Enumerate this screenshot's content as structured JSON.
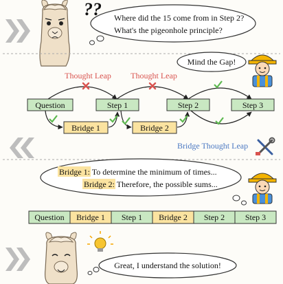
{
  "panel1": {
    "question_marks": "??",
    "bubble_line1": "Where did the 15 come from in Step 2?",
    "bubble_line2": "What's the pigeonhole principle?"
  },
  "worker_bubble": "Mind the Gap!",
  "flow": {
    "leap_label_left": "Thought Leap",
    "leap_label_right": "Thought Leap",
    "nodes": [
      "Question",
      "Step 1",
      "Step 2",
      "Step 3"
    ],
    "bridges": [
      "Bridge 1",
      "Bridge 2"
    ],
    "bridge_caption": "Bridge Thought Leap"
  },
  "panel3": {
    "bridge1_tag": "Bridge 1:",
    "bridge1_text": "To determine the minimum of times...",
    "bridge2_tag": "Bridge 2:",
    "bridge2_text": "Therefore, the possible sums..."
  },
  "sequence": [
    "Question",
    "Bridge 1",
    "Step 1",
    "Bridge 2",
    "Step 2",
    "Step 3"
  ],
  "panel4": {
    "bubble_text": "Great, I understand the solution!"
  },
  "colors": {
    "step_fill": "#c9e8c2",
    "bridge_fill": "#fbe3a0",
    "leap_red": "#d9534f",
    "caption_blue": "#4a78c2",
    "check_green": "#5cb84f",
    "chevron_gray": "#b9b9b9",
    "llama_fur": "#efe0c8"
  }
}
